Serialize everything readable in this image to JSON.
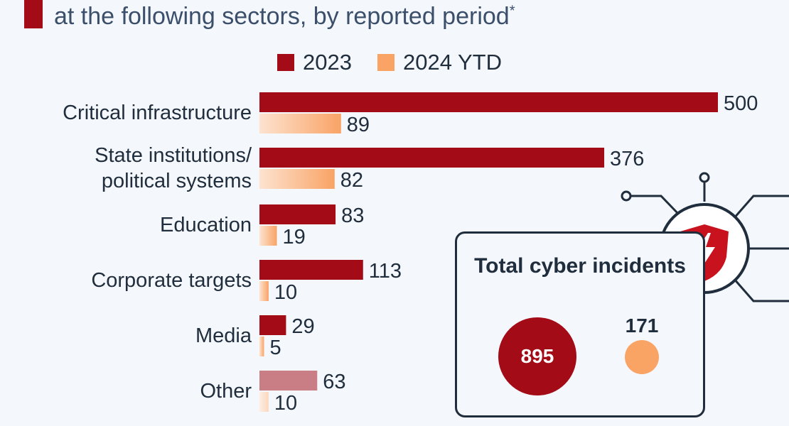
{
  "title": {
    "line": "at the following sectors, by reported period",
    "footnote_mark": "*"
  },
  "legend": [
    {
      "label": "2023",
      "color": "#a30b17"
    },
    {
      "label": "2024 YTD",
      "color": "#f9a365"
    }
  ],
  "chart_data": {
    "type": "bar",
    "orientation": "horizontal",
    "categories": [
      [
        "Critical infrastructure"
      ],
      [
        "State institutions/",
        "political systems"
      ],
      [
        "Education"
      ],
      [
        "Corporate targets"
      ],
      [
        "Media"
      ],
      [
        "Other"
      ]
    ],
    "series": [
      {
        "name": "2023",
        "values": [
          500,
          376,
          83,
          113,
          29,
          63
        ],
        "color": "#a30b17"
      },
      {
        "name": "2024 YTD",
        "values": [
          89,
          82,
          19,
          10,
          5,
          10
        ],
        "color": "#f9a365"
      }
    ],
    "xlim": [
      0,
      500
    ],
    "highlight_colors": {
      "Other_2023": "#c97d84",
      "Other_2024": "#fbe1cf"
    },
    "grid": false,
    "legend_position": "top"
  },
  "totals": {
    "title": "Total cyber incidents",
    "value_2023": "895",
    "value_2024": "171",
    "icon": "shield-lightning-icon"
  }
}
